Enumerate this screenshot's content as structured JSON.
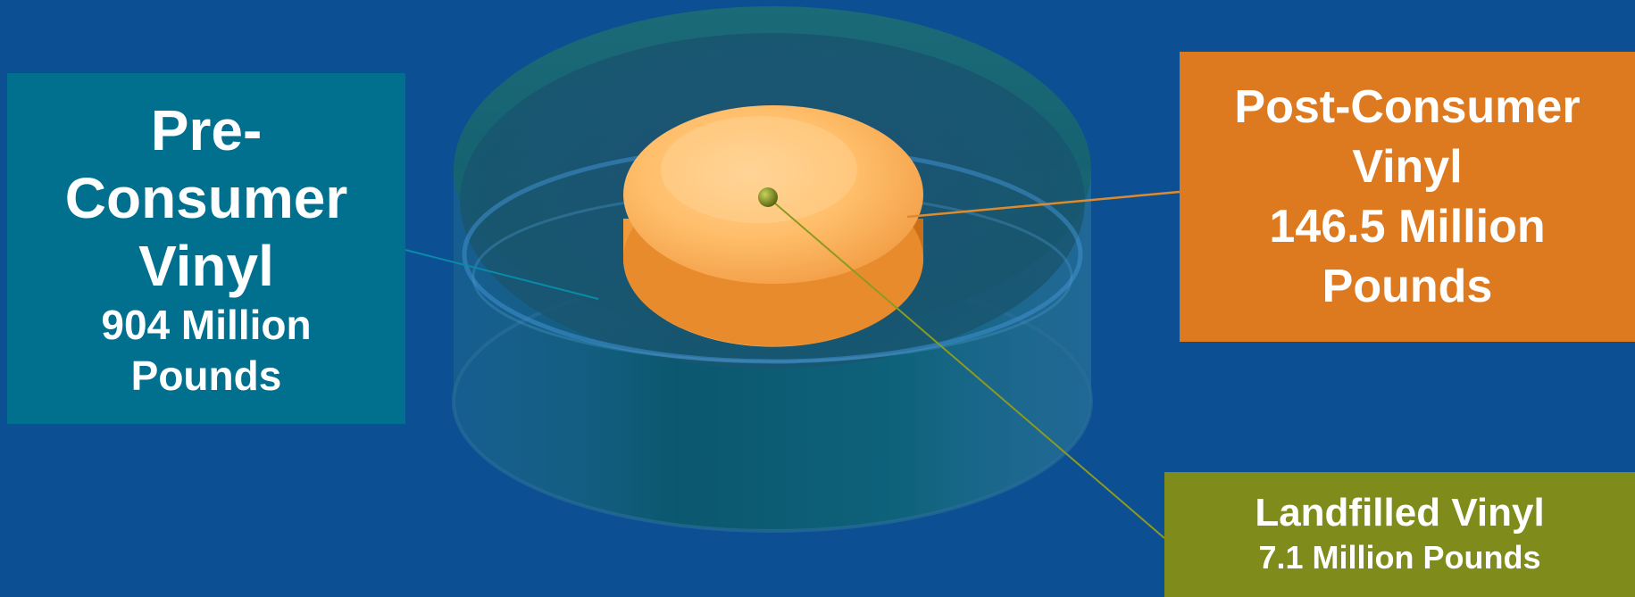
{
  "pre_consumer": {
    "title_line1": "Pre-",
    "title_line2": "Consumer",
    "title_line3": "Vinyl",
    "amount_line1": "904 Million",
    "amount_line2": "Pounds"
  },
  "post_consumer": {
    "title_line1": "Post-Consumer",
    "title_line2": "Vinyl",
    "amount_line1": "146.5 Million",
    "amount_line2": "Pounds"
  },
  "landfilled": {
    "title": "Landfilled Vinyl",
    "amount": "7.1 Million Pounds"
  },
  "colors": {
    "background": "#0c4f93",
    "pre_consumer": "#00708e",
    "post_consumer": "#dd7a1f",
    "landfilled": "#7f8b1b"
  }
}
